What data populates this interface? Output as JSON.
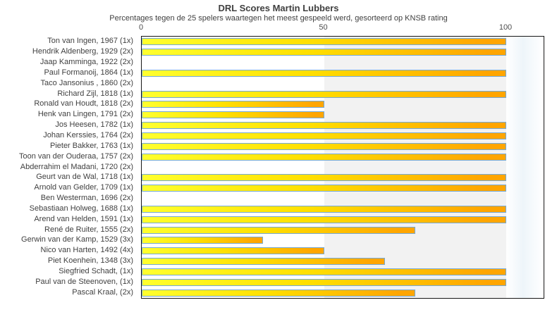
{
  "title": "DRL Scores Martin Lubbers",
  "subtitle": "Percentages tegen de 25 spelers waartegen het meest gespeeld werd, gesorteerd op KNSB rating",
  "colors": {
    "bar_gradient_left": "#ffff2e",
    "bar_gradient_right": "#ffa500",
    "bar_border": "#74a9d8",
    "band_fill": "#f2f2f2",
    "plot_border": "#161616",
    "text": "#404040"
  },
  "chart_data": {
    "type": "bar",
    "orientation": "horizontal",
    "title": "DRL Scores Martin Lubbers",
    "subtitle": "Percentages tegen de 25 spelers waartegen het meest gespeeld werd, gesorteerd op KNSB rating",
    "xlabel": "",
    "ylabel": "",
    "xlim": [
      0,
      110.25
    ],
    "x_ticks": [
      0,
      50,
      100
    ],
    "shaded_band_x": [
      50,
      100
    ],
    "grid": false,
    "legend": "none",
    "categories": [
      "Ton van Ingen, 1967 (1x)",
      "Hendrik Aldenberg, 1929 (2x)",
      "Jaap Kamminga, 1922 (2x)",
      "Paul Formanoij, 1864 (1x)",
      "Taco Jansonius , 1860 (2x)",
      "Richard Zijl, 1818 (1x)",
      "Ronald van Houdt, 1818 (2x)",
      "Henk van Lingen, 1791 (2x)",
      "Jos Heesen, 1782 (1x)",
      "Johan Kerssies, 1764 (2x)",
      "Pieter Bakker, 1763 (1x)",
      "Toon van der Ouderaa, 1757 (2x)",
      "Abderrahim el Madani, 1720 (2x)",
      "Geurt van de Wal, 1718 (1x)",
      "Arnold van Gelder, 1709 (1x)",
      "Ben Westerman, 1696 (2x)",
      "Sebastiaan Holweg, 1688 (1x)",
      "Arend van Helden, 1591 (1x)",
      "René de Ruiter, 1555 (2x)",
      "Gerwin van der Kamp, 1529 (3x)",
      "Nico van Harten, 1492 (4x)",
      "Piet Koenhein, 1348 (3x)",
      "Siegfried Schadt,  (1x)",
      "Paul van de Steenoven,  (1x)",
      "Pascal Kraal,  (2x)"
    ],
    "values": [
      100,
      100,
      0,
      100,
      0,
      100,
      50,
      50,
      100,
      100,
      100,
      100,
      0,
      100,
      100,
      0,
      100,
      100,
      75,
      33.3,
      50,
      66.7,
      100,
      100,
      75
    ]
  }
}
